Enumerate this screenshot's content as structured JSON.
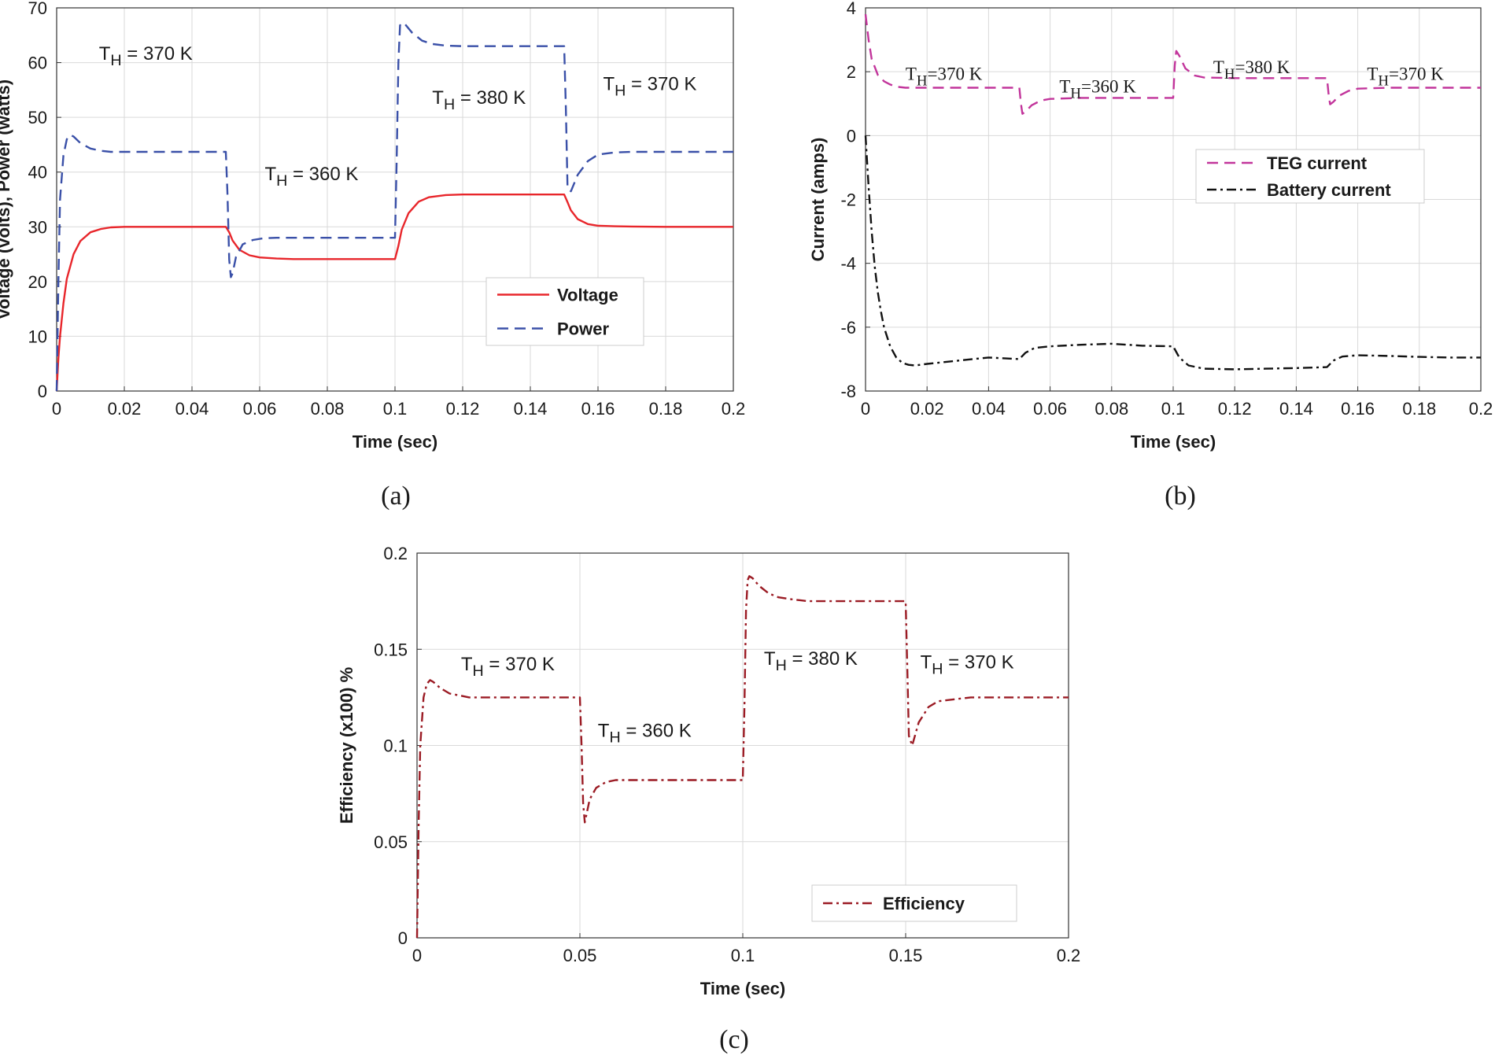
{
  "figure": {
    "captions": [
      "(a)",
      "(b)",
      "(c)"
    ]
  },
  "chart_data": [
    {
      "id": "a",
      "type": "line",
      "title": "",
      "xlabel": "Time (sec)",
      "ylabel": "Voltage (volts), Power (watts)",
      "xlim": [
        0,
        0.2
      ],
      "ylim": [
        0,
        70
      ],
      "xticks": [
        0,
        0.02,
        0.04,
        0.06,
        0.08,
        0.1,
        0.12,
        0.14,
        0.16,
        0.18,
        0.2
      ],
      "xtick_labels": [
        "0",
        "0.02",
        "0.04",
        "0.06",
        "0.08",
        "0.1",
        "0.12",
        "0.14",
        "0.16",
        "0.18",
        "0.2"
      ],
      "yticks": [
        0,
        10,
        20,
        30,
        40,
        50,
        60,
        70
      ],
      "ytick_labels": [
        "0",
        "10",
        "20",
        "30",
        "40",
        "50",
        "60",
        "70"
      ],
      "grid": true,
      "legend_position": "center-right",
      "series": [
        {
          "name": "Voltage",
          "color": "#e8262b",
          "style": "solid",
          "x": [
            0,
            0.0005,
            0.001,
            0.002,
            0.003,
            0.005,
            0.007,
            0.01,
            0.013,
            0.016,
            0.02,
            0.03,
            0.04,
            0.05,
            0.051,
            0.052,
            0.054,
            0.057,
            0.06,
            0.065,
            0.07,
            0.08,
            0.09,
            0.1,
            0.101,
            0.102,
            0.104,
            0.107,
            0.11,
            0.115,
            0.12,
            0.13,
            0.14,
            0.15,
            0.151,
            0.152,
            0.154,
            0.157,
            0.16,
            0.165,
            0.17,
            0.18,
            0.19,
            0.2
          ],
          "y": [
            0,
            6,
            10,
            16,
            20.5,
            25,
            27.4,
            29,
            29.6,
            29.9,
            30,
            30,
            30,
            30,
            29,
            27.5,
            25.8,
            24.8,
            24.4,
            24.2,
            24.1,
            24.1,
            24.1,
            24.1,
            26.5,
            29.5,
            32.5,
            34.6,
            35.4,
            35.8,
            35.9,
            35.9,
            35.9,
            35.9,
            34.5,
            33,
            31.4,
            30.5,
            30.2,
            30.1,
            30.05,
            30,
            30,
            30
          ]
        },
        {
          "name": "Power",
          "color": "#3a50a8",
          "style": "dashed",
          "x": [
            0,
            0.0005,
            0.001,
            0.002,
            0.003,
            0.004,
            0.005,
            0.007,
            0.01,
            0.013,
            0.016,
            0.02,
            0.03,
            0.04,
            0.05,
            0.0505,
            0.051,
            0.0515,
            0.052,
            0.053,
            0.055,
            0.058,
            0.061,
            0.065,
            0.07,
            0.08,
            0.09,
            0.1,
            0.1005,
            0.101,
            0.1015,
            0.102,
            0.103,
            0.105,
            0.108,
            0.111,
            0.115,
            0.12,
            0.13,
            0.14,
            0.15,
            0.1505,
            0.151,
            0.152,
            0.154,
            0.157,
            0.16,
            0.165,
            0.17,
            0.18,
            0.19,
            0.2
          ],
          "y": [
            0,
            20,
            35,
            43,
            46,
            46.8,
            46.5,
            45.3,
            44.3,
            43.9,
            43.7,
            43.7,
            43.7,
            43.7,
            43.7,
            36,
            24,
            20.8,
            21.5,
            24.5,
            26.8,
            27.6,
            27.9,
            28,
            28,
            28,
            28,
            28,
            42,
            60,
            66.8,
            67.3,
            67,
            65.5,
            64,
            63.4,
            63.1,
            63,
            63,
            63,
            63,
            52,
            37,
            36.5,
            39.5,
            42,
            43.2,
            43.6,
            43.7,
            43.7,
            43.7,
            43.7
          ]
        }
      ],
      "annotations": [
        {
          "text": "T",
          "sub": "H",
          "rest": " = 370 K",
          "x": 0.0125,
          "y": 60.5
        },
        {
          "text": "T",
          "sub": "H",
          "rest": " = 360 K",
          "x": 0.0615,
          "y": 38.5
        },
        {
          "text": "T",
          "sub": "H",
          "rest": " = 380 K",
          "x": 0.111,
          "y": 52.5
        },
        {
          "text": "T",
          "sub": "H",
          "rest": " = 370 K",
          "x": 0.1615,
          "y": 55
        }
      ]
    },
    {
      "id": "b",
      "type": "line",
      "title": "",
      "xlabel": "Time (sec)",
      "ylabel": "Current (amps)",
      "xlim": [
        0,
        0.2
      ],
      "ylim": [
        -8,
        4
      ],
      "xticks": [
        0,
        0.02,
        0.04,
        0.06,
        0.08,
        0.1,
        0.12,
        0.14,
        0.16,
        0.18,
        0.2
      ],
      "xtick_labels": [
        "0",
        "0.02",
        "0.04",
        "0.06",
        "0.08",
        "0.1",
        "0.12",
        "0.14",
        "0.16",
        "0.18",
        "0.2"
      ],
      "yticks": [
        -8,
        -6,
        -4,
        -2,
        0,
        2,
        4
      ],
      "ytick_labels": [
        "-8",
        "-6",
        "-4",
        "-2",
        "0",
        "2",
        "4"
      ],
      "grid": true,
      "legend_position": "center-right",
      "series": [
        {
          "name": "TEG current",
          "color": "#c2359b",
          "style": "dashed",
          "x": [
            0,
            0.001,
            0.002,
            0.004,
            0.006,
            0.008,
            0.01,
            0.013,
            0.016,
            0.02,
            0.03,
            0.04,
            0.05,
            0.0505,
            0.051,
            0.052,
            0.054,
            0.057,
            0.06,
            0.07,
            0.08,
            0.09,
            0.1,
            0.1005,
            0.101,
            0.102,
            0.104,
            0.107,
            0.11,
            0.12,
            0.13,
            0.14,
            0.15,
            0.1505,
            0.151,
            0.152,
            0.154,
            0.157,
            0.16,
            0.17,
            0.18,
            0.19,
            0.2
          ],
          "y": [
            3.8,
            3.0,
            2.4,
            1.9,
            1.7,
            1.6,
            1.53,
            1.5,
            1.5,
            1.5,
            1.5,
            1.5,
            1.5,
            1.0,
            0.68,
            0.75,
            0.95,
            1.1,
            1.15,
            1.18,
            1.18,
            1.18,
            1.18,
            2.2,
            2.65,
            2.5,
            2.1,
            1.88,
            1.82,
            1.8,
            1.8,
            1.8,
            1.8,
            1.3,
            0.98,
            1.05,
            1.25,
            1.4,
            1.47,
            1.5,
            1.5,
            1.5,
            1.5
          ]
        },
        {
          "name": "Battery current",
          "color": "#111111",
          "style": "dashdot",
          "x": [
            0,
            0.001,
            0.002,
            0.003,
            0.004,
            0.005,
            0.006,
            0.008,
            0.01,
            0.012,
            0.014,
            0.016,
            0.02,
            0.03,
            0.04,
            0.05,
            0.052,
            0.055,
            0.06,
            0.07,
            0.08,
            0.09,
            0.1,
            0.102,
            0.105,
            0.11,
            0.12,
            0.13,
            0.14,
            0.15,
            0.152,
            0.155,
            0.16,
            0.17,
            0.18,
            0.19,
            0.2
          ],
          "y": [
            0,
            -1.6,
            -3.0,
            -4.1,
            -4.9,
            -5.5,
            -6.0,
            -6.6,
            -6.95,
            -7.12,
            -7.18,
            -7.2,
            -7.15,
            -7.05,
            -6.95,
            -7.0,
            -6.8,
            -6.65,
            -6.6,
            -6.55,
            -6.52,
            -6.58,
            -6.6,
            -6.95,
            -7.2,
            -7.3,
            -7.32,
            -7.3,
            -7.28,
            -7.25,
            -7.05,
            -6.92,
            -6.88,
            -6.9,
            -6.93,
            -6.95,
            -6.95
          ]
        }
      ],
      "annotations": [
        {
          "text": "T",
          "sub": "H",
          "rest": "=370 K",
          "x": 0.013,
          "y": 1.75
        },
        {
          "text": "T",
          "sub": "H",
          "rest": "=360 K",
          "x": 0.063,
          "y": 1.35
        },
        {
          "text": "T",
          "sub": "H",
          "rest": "=380 K",
          "x": 0.113,
          "y": 1.95
        },
        {
          "text": "T",
          "sub": "H",
          "rest": "=370 K",
          "x": 0.163,
          "y": 1.75
        }
      ]
    },
    {
      "id": "c",
      "type": "line",
      "title": "",
      "xlabel": "Time (sec)",
      "ylabel": "Efficiency (x100) %",
      "xlim": [
        0,
        0.2
      ],
      "ylim": [
        0,
        0.2
      ],
      "xticks": [
        0,
        0.05,
        0.1,
        0.15,
        0.2
      ],
      "xtick_labels": [
        "0",
        "0.05",
        "0.1",
        "0.15",
        "0.2"
      ],
      "yticks": [
        0,
        0.05,
        0.1,
        0.15,
        0.2
      ],
      "ytick_labels": [
        "0",
        "0.05",
        "0.1",
        "0.15",
        "0.2"
      ],
      "grid": true,
      "legend_position": "bottom-right",
      "series": [
        {
          "name": "Efficiency",
          "color": "#9b1b24",
          "style": "dashdot",
          "x": [
            0,
            0.0005,
            0.001,
            0.002,
            0.003,
            0.004,
            0.005,
            0.007,
            0.01,
            0.013,
            0.016,
            0.02,
            0.03,
            0.04,
            0.05,
            0.0505,
            0.051,
            0.0515,
            0.052,
            0.053,
            0.055,
            0.058,
            0.061,
            0.065,
            0.07,
            0.08,
            0.09,
            0.1,
            0.1005,
            0.101,
            0.1015,
            0.102,
            0.103,
            0.105,
            0.108,
            0.111,
            0.115,
            0.12,
            0.13,
            0.14,
            0.15,
            0.1505,
            0.151,
            0.152,
            0.154,
            0.157,
            0.16,
            0.165,
            0.17,
            0.18,
            0.19,
            0.2
          ],
          "y": [
            0,
            0.06,
            0.1,
            0.125,
            0.132,
            0.134,
            0.133,
            0.13,
            0.127,
            0.126,
            0.125,
            0.125,
            0.125,
            0.125,
            0.125,
            0.1,
            0.07,
            0.06,
            0.064,
            0.072,
            0.078,
            0.081,
            0.082,
            0.082,
            0.082,
            0.082,
            0.082,
            0.082,
            0.12,
            0.17,
            0.186,
            0.188,
            0.187,
            0.183,
            0.179,
            0.177,
            0.176,
            0.175,
            0.175,
            0.175,
            0.175,
            0.14,
            0.105,
            0.1,
            0.112,
            0.12,
            0.123,
            0.124,
            0.125,
            0.125,
            0.125,
            0.125
          ]
        }
      ],
      "annotations": [
        {
          "text": "T",
          "sub": "H",
          "rest": " = 370 K",
          "x": 0.0135,
          "y": 0.139
        },
        {
          "text": "T",
          "sub": "H",
          "rest": " = 360 K",
          "x": 0.0555,
          "y": 0.1045
        },
        {
          "text": "T",
          "sub": "H",
          "rest": " = 380 K",
          "x": 0.1065,
          "y": 0.142
        },
        {
          "text": "T",
          "sub": "H",
          "rest": " = 370 K",
          "x": 0.1545,
          "y": 0.14
        }
      ]
    }
  ]
}
